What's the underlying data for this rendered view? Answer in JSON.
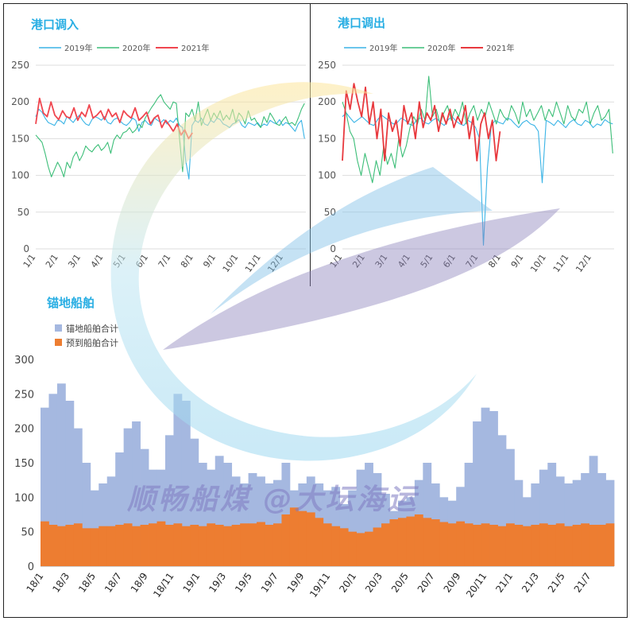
{
  "watermark": {
    "text": "顺畅船煤 @大坛海运",
    "colors": {
      "ring_yellow": "#fde59a",
      "ring_blue": "#9ed8f0",
      "sail_blue": "#7fbfe6",
      "sail_purple": "#8e86bd",
      "text": "#7f7bc2"
    }
  },
  "chart_data": [
    {
      "type": "line",
      "title": "港口调入",
      "x_ticks": [
        "1/1",
        "2/1",
        "3/1",
        "4/1",
        "5/1",
        "6/1",
        "7/1",
        "8/1",
        "9/1",
        "10/1",
        "11/1",
        "12/1"
      ],
      "ylim": [
        0,
        250
      ],
      "y_ticks": [
        0,
        50,
        100,
        150,
        200,
        250
      ],
      "grid": true,
      "legend_position": "top-left",
      "series": [
        {
          "name": "2019年",
          "color": "#3ab4e6",
          "values": [
            180,
            190,
            186,
            178,
            172,
            170,
            168,
            175,
            174,
            170,
            180,
            176,
            172,
            178,
            182,
            175,
            170,
            168,
            176,
            180,
            178,
            175,
            180,
            172,
            170,
            176,
            178,
            174,
            170,
            168,
            172,
            178,
            175,
            160,
            172,
            175,
            170,
            168,
            178,
            175,
            172,
            176,
            170,
            175,
            172,
            178,
            168,
            165,
            120,
            95,
            168,
            175,
            172,
            178,
            170,
            168,
            175,
            172,
            178,
            176,
            170,
            168,
            165,
            170,
            172,
            176,
            168,
            165,
            172,
            170,
            168,
            172,
            166,
            170,
            168,
            175,
            172,
            170,
            176,
            168,
            172,
            170,
            165,
            160,
            170,
            175,
            150
          ]
        },
        {
          "name": "2020年",
          "color": "#3cbe78",
          "values": [
            155,
            150,
            145,
            130,
            112,
            98,
            108,
            118,
            110,
            98,
            118,
            110,
            125,
            132,
            120,
            128,
            140,
            135,
            132,
            138,
            142,
            134,
            138,
            145,
            130,
            148,
            155,
            150,
            158,
            160,
            165,
            158,
            162,
            170,
            165,
            178,
            185,
            192,
            198,
            205,
            210,
            200,
            195,
            190,
            200,
            198,
            150,
            105,
            185,
            180,
            190,
            175,
            200,
            168,
            180,
            190,
            175,
            185,
            178,
            188,
            175,
            182,
            176,
            190,
            172,
            185,
            180,
            170,
            188,
            175,
            178,
            170,
            165,
            180,
            172,
            185,
            178,
            170,
            168,
            175,
            180,
            170,
            172,
            168,
            178,
            190,
            198
          ]
        },
        {
          "name": "2021年",
          "color": "#f0464f",
          "values": [
            170,
            205,
            185,
            180,
            200,
            182,
            176,
            188,
            180,
            178,
            192,
            175,
            186,
            180,
            196,
            178,
            182,
            188,
            176,
            190,
            180,
            185,
            172,
            188,
            182,
            178,
            192,
            175,
            180,
            186,
            170,
            178,
            182,
            165,
            175,
            168,
            160,
            170,
            155,
            162,
            150,
            158
          ]
        }
      ]
    },
    {
      "type": "line",
      "title": "港口调出",
      "x_ticks": [
        "1/1",
        "2/1",
        "3/1",
        "4/1",
        "5/1",
        "6/1",
        "7/1",
        "8/1",
        "9/1",
        "10/1",
        "11/1",
        "12/1"
      ],
      "ylim": [
        0,
        250
      ],
      "y_ticks": [
        0,
        50,
        100,
        150,
        200,
        250
      ],
      "grid": true,
      "legend_position": "top-left",
      "series": [
        {
          "name": "2019年",
          "color": "#3ab4e6",
          "values": [
            180,
            185,
            178,
            172,
            176,
            180,
            175,
            170,
            168,
            176,
            182,
            178,
            174,
            170,
            172,
            178,
            175,
            170,
            168,
            176,
            178,
            172,
            170,
            175,
            178,
            172,
            168,
            176,
            180,
            174,
            170,
            168,
            175,
            172,
            165,
            150,
            5,
            110,
            168,
            175,
            172,
            170,
            178,
            176,
            170,
            165,
            172,
            175,
            170,
            168,
            160,
            90,
            175,
            172,
            168,
            175,
            170,
            165,
            172,
            176,
            170,
            168,
            175,
            172,
            165,
            170,
            168,
            176,
            172,
            170
          ]
        },
        {
          "name": "2020年",
          "color": "#3cbe78",
          "values": [
            200,
            185,
            160,
            150,
            120,
            100,
            130,
            110,
            90,
            120,
            100,
            140,
            115,
            130,
            110,
            150,
            125,
            140,
            165,
            180,
            170,
            190,
            175,
            235,
            180,
            190,
            170,
            185,
            195,
            175,
            190,
            180,
            200,
            170,
            185,
            195,
            175,
            190,
            180,
            200,
            185,
            170,
            190,
            180,
            175,
            195,
            185,
            170,
            200,
            180,
            190,
            175,
            185,
            195,
            175,
            190,
            180,
            200,
            185,
            170,
            195,
            180,
            175,
            190,
            185,
            200,
            170,
            185,
            195,
            175,
            180,
            190,
            130
          ]
        },
        {
          "name": "2021年",
          "color": "#e8393e",
          "values": [
            120,
            215,
            190,
            225,
            200,
            180,
            220,
            170,
            200,
            150,
            190,
            120,
            185,
            160,
            175,
            140,
            195,
            170,
            185,
            150,
            200,
            165,
            185,
            175,
            195,
            160,
            185,
            170,
            190,
            165,
            180,
            170,
            195,
            150,
            180,
            120,
            170,
            185,
            150,
            175,
            120,
            160
          ]
        }
      ]
    },
    {
      "type": "bar",
      "title": "锚地船舶",
      "x_ticks": [
        "18/1",
        "18/3",
        "18/5",
        "18/7",
        "18/9",
        "18/11",
        "19/1",
        "19/3",
        "19/5",
        "19/7",
        "19/9",
        "19/11",
        "20/1",
        "20/3",
        "20/5",
        "20/7",
        "20/9",
        "20/11",
        "21/1",
        "21/3",
        "21/5",
        "21/7"
      ],
      "ylim": [
        0,
        300
      ],
      "y_ticks": [
        0,
        50,
        100,
        150,
        200,
        250,
        300
      ],
      "grid": false,
      "legend_position": "top-left",
      "series": [
        {
          "name": "锚地船舶合计",
          "color": "#a5b8e0",
          "values": [
            230,
            250,
            265,
            240,
            200,
            150,
            110,
            120,
            130,
            165,
            200,
            210,
            170,
            140,
            140,
            190,
            250,
            240,
            185,
            150,
            140,
            160,
            150,
            130,
            120,
            135,
            130,
            120,
            125,
            150,
            110,
            120,
            130,
            120,
            110,
            115,
            90,
            110,
            140,
            150,
            135,
            105,
            80,
            95,
            100,
            125,
            150,
            120,
            100,
            95,
            115,
            150,
            210,
            230,
            225,
            190,
            170,
            125,
            100,
            120,
            140,
            150,
            130,
            120,
            125,
            135,
            160,
            135,
            125
          ]
        },
        {
          "name": "预到船舶合计",
          "color": "#ed7d31",
          "values": [
            65,
            60,
            58,
            60,
            62,
            55,
            55,
            58,
            58,
            60,
            62,
            58,
            60,
            62,
            65,
            60,
            62,
            58,
            60,
            58,
            62,
            60,
            58,
            60,
            62,
            62,
            64,
            60,
            62,
            75,
            85,
            80,
            78,
            70,
            62,
            58,
            55,
            50,
            48,
            50,
            56,
            62,
            68,
            70,
            72,
            75,
            70,
            68,
            64,
            62,
            65,
            62,
            60,
            62,
            60,
            58,
            62,
            60,
            58,
            60,
            62,
            60,
            62,
            58,
            60,
            62,
            60,
            60,
            62
          ]
        }
      ]
    }
  ]
}
